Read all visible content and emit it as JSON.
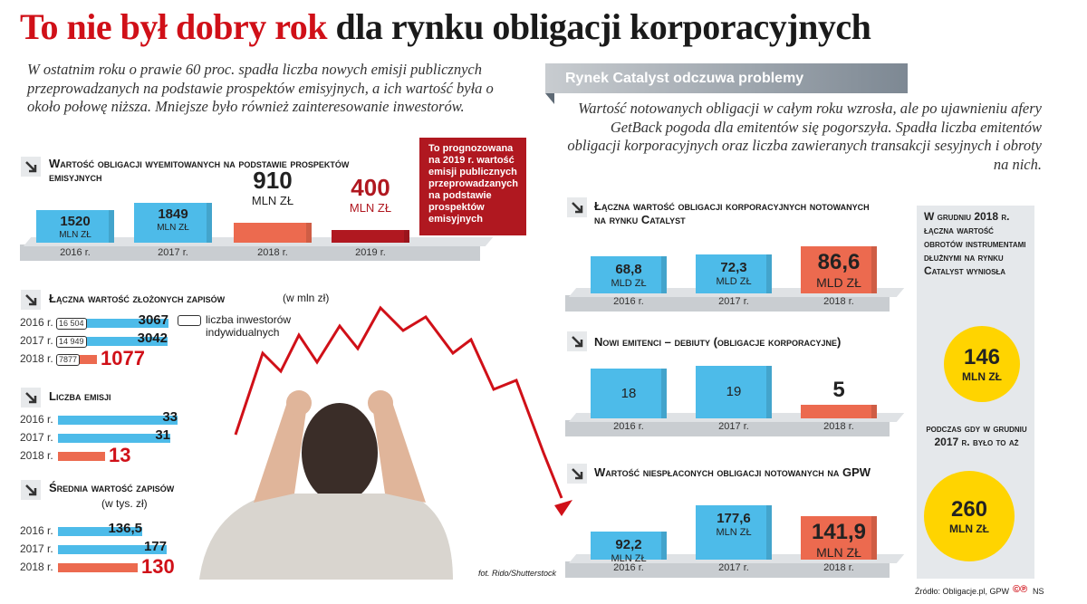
{
  "title": {
    "red": "To nie był dobry rok",
    "dark": "dla rynku obligacji korporacyjnych"
  },
  "lead": "W ostatnim roku o prawie 60 proc. spadła liczba nowych emisji publicznych przeprowadzanych na podstawie prospektów emisyjnych, a ich wartość była o około połowę niższa. Mniejsze było również zainteresowanie inwestorów.",
  "right_banner": "Rynek Catalyst odczuwa problemy",
  "right_lead": "Wartość notowanych obligacji w całym roku wzrosła, ale po ujawnieniu afery GetBack pogoda dla emitentów się pogorszyła. Spadła liczba emitentów obligacji korporacyjnych oraz liczba zawieranych transakcji sesyjnych i obroty na nich.",
  "note": "To prognozowana na 2019 r. wartość emisji publicznych przeprowadzanych na podstawie prospektów emisyjnych",
  "photo_credit": "fot. Rido/Shutterstock",
  "source": "Źródło: Obligacje.pl, GPW",
  "signature": "NS",
  "side_panel": {
    "text1": "W grudniu 2018 r. łączna wartość obrotów instrumentami dłużnymi na rynku Catalyst wyniosła",
    "circle1_value": "146",
    "circle1_unit": "MLN ZŁ",
    "text2": "podczas gdy w grudniu 2017 r. było to aż",
    "circle2_value": "260",
    "circle2_unit": "MLN ZŁ"
  },
  "legend_individual": "liczba inwestorów indywidualnych",
  "colors": {
    "blue": "#4dbbe9",
    "red": "#ec6a4f",
    "darkred": "#b01820",
    "yellow": "#ffd400",
    "platform": "#c9cdd1"
  },
  "chart_data": [
    {
      "id": "emisje_prospekt",
      "type": "bar",
      "title": "Wartość obligacji wyemitowanych na podstawie prospektów emisyjnych",
      "categories": [
        "2016 r.",
        "2017 r.",
        "2018 r.",
        "2019 r."
      ],
      "values": [
        1520,
        1849,
        910,
        400
      ],
      "labels": [
        "1520",
        "1849",
        "910",
        "400"
      ],
      "unit": "MLN ZŁ"
    },
    {
      "id": "zapisy",
      "type": "bar",
      "title": "Łączna wartość złożonych zapisów",
      "subtitle": "(w mln zł)",
      "categories": [
        "2016 r.",
        "2017 r.",
        "2018 r."
      ],
      "values": [
        3067,
        3042,
        1077
      ],
      "investors": [
        "16 504",
        "14 949",
        "7877"
      ]
    },
    {
      "id": "liczba_emisji",
      "type": "bar",
      "title": "Liczba emisji",
      "categories": [
        "2016 r.",
        "2017 r.",
        "2018 r."
      ],
      "values": [
        33,
        31,
        13
      ]
    },
    {
      "id": "srednia_zapisow",
      "type": "bar",
      "title": "Średnia wartość zapisów",
      "subtitle": "(w tys. zł)",
      "categories": [
        "2016 r.",
        "2017 r.",
        "2018 r."
      ],
      "values": [
        136.5,
        177,
        130
      ],
      "labels": [
        "136,5",
        "177",
        "130"
      ]
    },
    {
      "id": "catalyst_wartosc",
      "type": "bar",
      "title": "Łączna wartość obligacji korporacyjnych notowanych na rynku Catalyst",
      "categories": [
        "2016 r.",
        "2017 r.",
        "2018 r."
      ],
      "values": [
        68.8,
        72.3,
        86.6
      ],
      "labels": [
        "68,8",
        "72,3",
        "86,6"
      ],
      "unit": "MLD ZŁ"
    },
    {
      "id": "debiuty",
      "type": "bar",
      "title": "Nowi emitenci – debiuty (obligacje korporacyjne)",
      "categories": [
        "2016 r.",
        "2017 r.",
        "2018 r."
      ],
      "values": [
        18,
        19,
        5
      ]
    },
    {
      "id": "niesplacone",
      "type": "bar",
      "title": "Wartość niespłaconych obligacji notowanych na GPW",
      "categories": [
        "2016 r.",
        "2017 r.",
        "2018 r."
      ],
      "values": [
        92.2,
        177.6,
        141.9
      ],
      "labels": [
        "92,2",
        "177,6",
        "141,9"
      ],
      "unit": "MLN ZŁ"
    }
  ]
}
